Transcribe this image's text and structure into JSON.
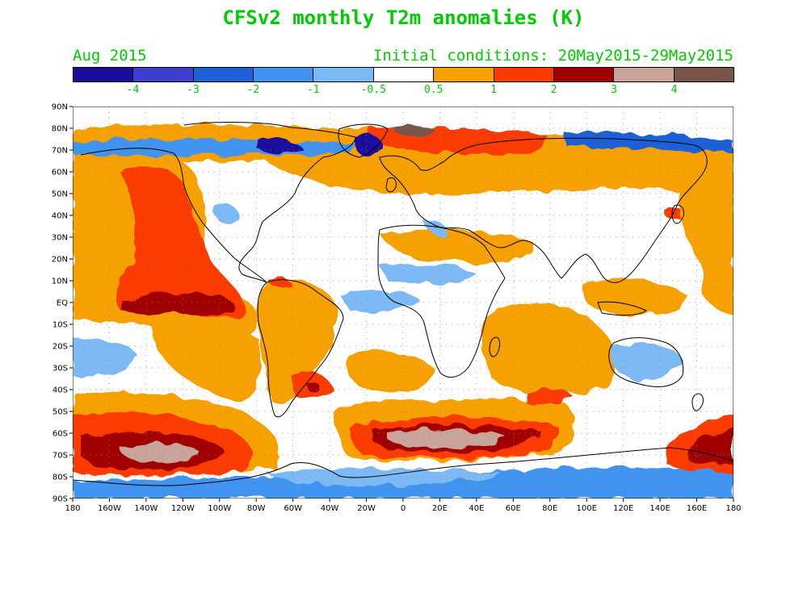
{
  "header": {
    "title": "CFSv2 monthly T2m anomalies (K)",
    "valid_month": "Aug 2015",
    "initial_conditions": "Initial conditions: 20May2015-29May2015",
    "text_color": "#00cc00"
  },
  "colorbar": {
    "colors": [
      "#1a0d9c",
      "#3f3fcf",
      "#1f61d6",
      "#3f93ef",
      "#7bb9f5",
      "#ffffff",
      "#f7a100",
      "#fb3a00",
      "#a10000",
      "#c8a49a",
      "#7a5448"
    ],
    "labels": [
      "-4",
      "-3",
      "-2",
      "-1",
      "-0.5",
      "0.5",
      "1",
      "2",
      "3",
      "4"
    ]
  },
  "map": {
    "projection": "cylindrical equidistant",
    "lat_labels": [
      "90N",
      "80N",
      "70N",
      "60N",
      "50N",
      "40N",
      "30N",
      "20N",
      "10N",
      "EQ",
      "10S",
      "20S",
      "30S",
      "40S",
      "50S",
      "60S",
      "70S",
      "80S",
      "90S"
    ],
    "lon_labels": [
      "180",
      "160W",
      "140W",
      "120W",
      "100W",
      "80W",
      "60W",
      "40W",
      "20W",
      "0",
      "20E",
      "40E",
      "60E",
      "80E",
      "100E",
      "120E",
      "140E",
      "160E",
      "180"
    ],
    "grid": "dotted"
  }
}
